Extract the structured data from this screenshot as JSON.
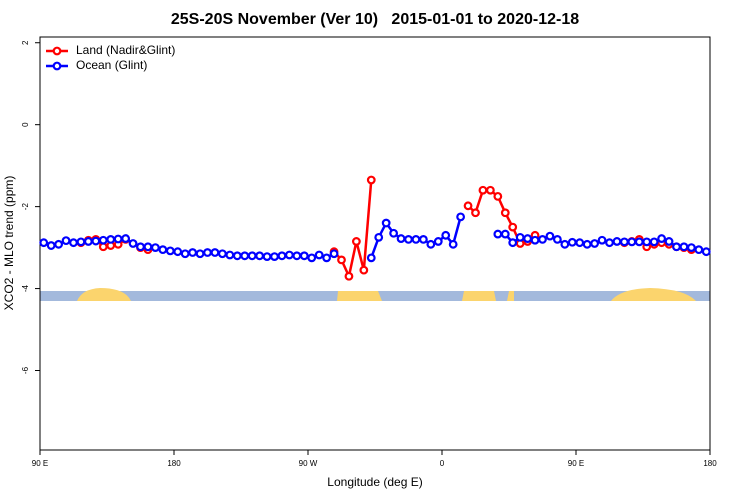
{
  "chart_data": {
    "type": "line",
    "title": "25S-20S November (Ver 10)   2015-01-01 to 2020-12-18",
    "x_label": "Longitude (deg E)",
    "y_label": "XCO2 - MLO trend (ppm)",
    "xlim": [
      90,
      540
    ],
    "ylim": [
      -7.94,
      2.14
    ],
    "xticks": [
      {
        "value": 90,
        "label": "90 E"
      },
      {
        "value": 180,
        "label": "180"
      },
      {
        "value": 270,
        "label": "90 W"
      },
      {
        "value": 360,
        "label": "0"
      },
      {
        "value": 450,
        "label": "90 E"
      },
      {
        "value": 540,
        "label": "180"
      }
    ],
    "yticks": [
      2,
      0,
      -2,
      -4,
      -6
    ],
    "legend": "top-left",
    "x": [
      92.5,
      97.5,
      102.5,
      107.5,
      112.5,
      117.5,
      122.5,
      127.5,
      132.5,
      137.5,
      142.5,
      147.5,
      152.5,
      157.5,
      162.5,
      167.5,
      172.5,
      177.5,
      182.5,
      187.5,
      192.5,
      197.5,
      202.5,
      207.5,
      212.5,
      217.5,
      222.5,
      227.5,
      232.5,
      237.5,
      242.5,
      247.5,
      252.5,
      257.5,
      262.5,
      267.5,
      272.5,
      277.5,
      282.5,
      287.5,
      292.5,
      297.5,
      302.5,
      307.5,
      312.5,
      317.5,
      322.5,
      327.5,
      332.5,
      337.5,
      342.5,
      347.5,
      352.5,
      357.5,
      362.5,
      367.5,
      372.5,
      377.5,
      382.5,
      387.5,
      392.5,
      397.5,
      402.5,
      407.5,
      412.5,
      417.5,
      422.5,
      427.5,
      432.5,
      437.5,
      442.5,
      447.5,
      452.5,
      457.5,
      462.5,
      467.5,
      472.5,
      477.5,
      482.5,
      487.5,
      492.5,
      497.5,
      502.5,
      507.5,
      512.5,
      517.5,
      522.5,
      527.5,
      532.5,
      537.5
    ],
    "series": [
      {
        "name": "Land (Nadir&Glint)",
        "color": "#ff0000",
        "values": [
          null,
          null,
          null,
          null,
          null,
          -2.88,
          -2.82,
          -2.8,
          -2.98,
          -2.95,
          -2.92,
          -2.8,
          null,
          -3.0,
          -3.05,
          null,
          null,
          null,
          null,
          null,
          null,
          null,
          null,
          null,
          null,
          null,
          null,
          null,
          null,
          null,
          null,
          null,
          null,
          null,
          null,
          null,
          null,
          null,
          null,
          -3.1,
          -3.3,
          -3.7,
          -2.85,
          -3.55,
          -1.35,
          null,
          null,
          null,
          null,
          null,
          null,
          null,
          null,
          null,
          null,
          null,
          null,
          -1.98,
          -2.15,
          -1.6,
          -1.6,
          -1.75,
          -2.15,
          -2.5,
          -2.9,
          -2.85,
          -2.7,
          null,
          null,
          null,
          null,
          null,
          null,
          null,
          null,
          null,
          null,
          null,
          -2.88,
          -2.85,
          -2.8,
          -2.98,
          -2.92,
          -2.88,
          -2.92,
          -2.98,
          -3.0,
          -3.05,
          null,
          null
        ]
      },
      {
        "name": "Ocean (Glint)",
        "color": "#0000ff",
        "values": [
          -2.88,
          -2.95,
          -2.92,
          -2.83,
          -2.88,
          -2.86,
          -2.85,
          -2.84,
          -2.82,
          -2.8,
          -2.79,
          -2.78,
          -2.9,
          -2.98,
          -2.98,
          -3.0,
          -3.05,
          -3.08,
          -3.1,
          -3.15,
          -3.12,
          -3.15,
          -3.12,
          -3.12,
          -3.15,
          -3.18,
          -3.2,
          -3.2,
          -3.2,
          -3.2,
          -3.22,
          -3.22,
          -3.2,
          -3.18,
          -3.2,
          -3.2,
          -3.25,
          -3.18,
          -3.25,
          -3.15,
          null,
          null,
          null,
          null,
          -3.25,
          -2.75,
          -2.4,
          -2.65,
          -2.78,
          -2.8,
          -2.8,
          -2.8,
          -2.92,
          -2.85,
          -2.7,
          -2.92,
          -2.25,
          null,
          null,
          null,
          null,
          -2.67,
          -2.67,
          -2.88,
          -2.75,
          -2.78,
          -2.82,
          -2.8,
          -2.72,
          -2.8,
          -2.92,
          -2.87,
          -2.88,
          -2.92,
          -2.9,
          -2.82,
          -2.88,
          -2.85,
          -2.86,
          -2.86,
          -2.86,
          -2.86,
          -2.86,
          -2.78,
          -2.85,
          -2.98,
          -2.98,
          -3.0,
          -3.05,
          -3.1
        ]
      }
    ]
  }
}
